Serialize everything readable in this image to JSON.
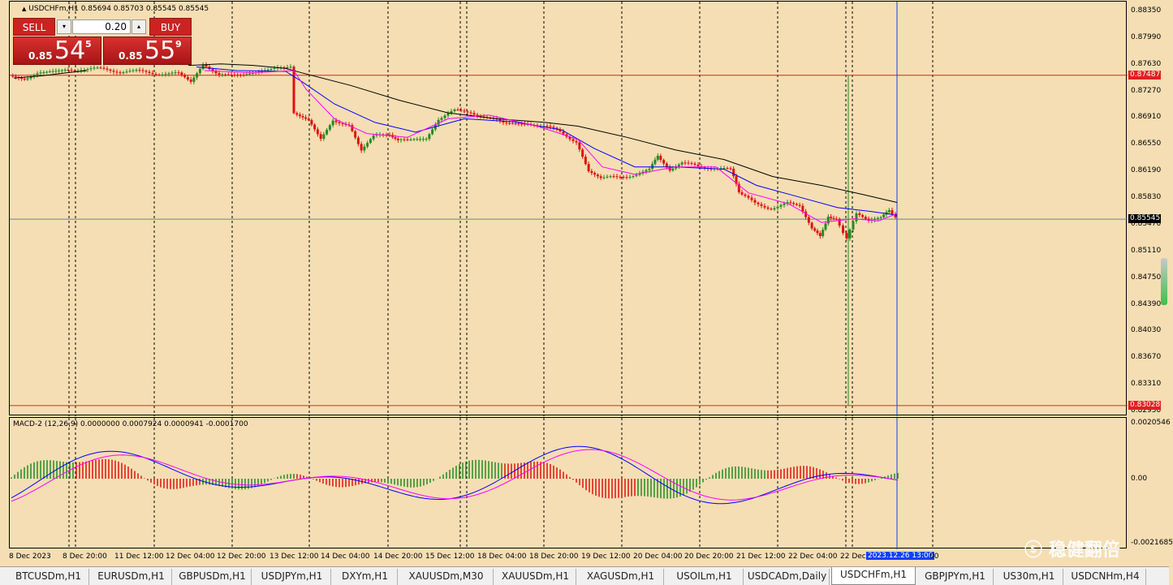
{
  "chart": {
    "title": "USDCHFm,H1  0.85694 0.85703 0.85545 0.85545",
    "symbol": "USDCHFm",
    "timeframe": "H1",
    "ohlc": {
      "open": 0.85694,
      "high": 0.85703,
      "low": 0.85545,
      "close": 0.85545
    }
  },
  "trade_panel": {
    "sell_label": "SELL",
    "buy_label": "BUY",
    "lot_value": "0.20",
    "sell_quote": {
      "prefix": "0.85",
      "big": "54",
      "sup": "5"
    },
    "buy_quote": {
      "prefix": "0.85",
      "big": "55",
      "sup": "9"
    }
  },
  "price_axis": {
    "labels": [
      "0.88350",
      "0.87990",
      "0.87630",
      "0.87270",
      "0.86910",
      "0.86550",
      "0.86190",
      "0.85830",
      "0.85470",
      "0.85110",
      "0.84750",
      "0.84390",
      "0.84030",
      "0.83670",
      "0.83310",
      "0.82950"
    ],
    "tags": [
      {
        "value": "0.87487",
        "color": "#e02020"
      },
      {
        "value": "0.85545",
        "color": "#000000"
      },
      {
        "value": "0.83028",
        "color": "#e02020"
      }
    ]
  },
  "macd": {
    "title": "MACD-2 (12,26,9) 0.0000000 0.0007924 0.0000941 -0.0001700",
    "axis_labels": [
      "0.0020546",
      "0.00"
    ],
    "bottom_label": "-0.0021685"
  },
  "time_axis": {
    "labels": [
      "8 Dec 2023",
      "8 Dec 20:00",
      "11 Dec 12:00",
      "12 Dec 04:00",
      "12 Dec 20:00",
      "13 Dec 12:00",
      "14 Dec 04:00",
      "14 Dec 20:00",
      "15 Dec 12:00",
      "18 Dec 04:00",
      "18 Dec 20:00",
      "19 Dec 12:00",
      "20 Dec 04:00",
      "20 Dec 20:00",
      "21 Dec 12:00",
      "22 Dec 04:00",
      "22 Dec"
    ],
    "crosshair_label": "2023.12.26 13:00",
    "tail_label": "00"
  },
  "tabs": [
    {
      "label": "BTCUSDm,H1",
      "active": false
    },
    {
      "label": "EURUSDm,H1",
      "active": false
    },
    {
      "label": "GBPUSDm,H1",
      "active": false
    },
    {
      "label": "USDJPYm,H1",
      "active": false
    },
    {
      "label": "DXYm,H1",
      "active": false
    },
    {
      "label": "XAUUSDm,M30",
      "active": false
    },
    {
      "label": "XAUUSDm,H1",
      "active": false
    },
    {
      "label": "XAGUSDm,H1",
      "active": false
    },
    {
      "label": "USOILm,H1",
      "active": false
    },
    {
      "label": "USDCADm,Daily",
      "active": false
    },
    {
      "label": "USDCHFm,H1",
      "active": true
    },
    {
      "label": "GBPJPYm,H1",
      "active": false
    },
    {
      "label": "US30m,H1",
      "active": false
    },
    {
      "label": "USDCNHm,H4",
      "active": false
    }
  ],
  "watermark": "稳健翻倍",
  "colors": {
    "background": "#f5deb3",
    "bull": "#228b22",
    "bear": "#e01010",
    "ma_fast": "#ff00ff",
    "ma_mid": "#0000ff",
    "ma_slow": "#000000",
    "hline": "#e02020",
    "bid_line": "#7080a0",
    "vline": "#1040ff"
  }
}
